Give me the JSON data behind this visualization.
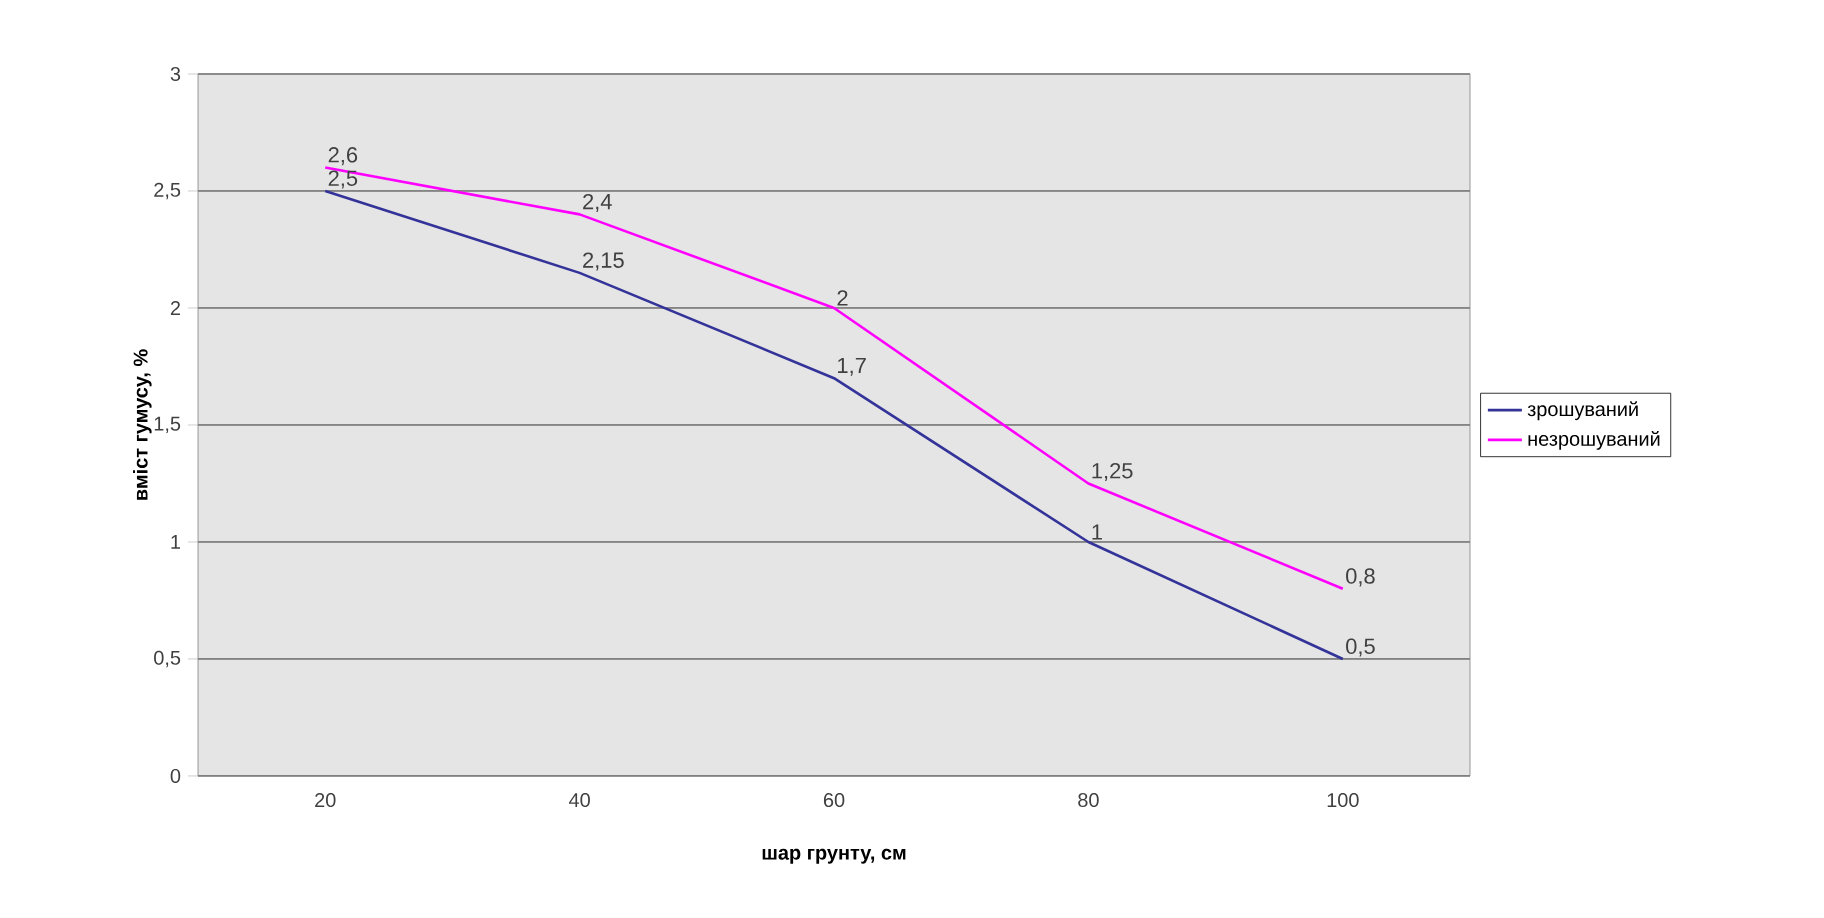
{
  "chart_data": {
    "type": "line",
    "xlabel": "шар грунту, см",
    "ylabel": "вміст гумусу, %",
    "categories": [
      "20",
      "40",
      "60",
      "80",
      "100"
    ],
    "series": [
      {
        "name": "зрошуваний",
        "color": "#333399",
        "values": [
          2.5,
          2.15,
          1.7,
          1,
          0.5
        ],
        "value_labels": [
          "2,5",
          "2,15",
          "1,7",
          "1",
          "0,5"
        ]
      },
      {
        "name": "незрошуваний",
        "color": "#ff00ff",
        "values": [
          2.6,
          2.4,
          2,
          1.25,
          0.8
        ],
        "value_labels": [
          "2,6",
          "2,4",
          "2",
          "1,25",
          "0,8"
        ]
      }
    ],
    "ylim": [
      0,
      3
    ],
    "yticks": [
      0,
      {
        "value": 0.5,
        "label": "0,5"
      },
      1,
      {
        "value": 1.5,
        "label": "1,5"
      },
      2,
      {
        "value": 2.5,
        "label": "2,5"
      },
      3
    ],
    "grid": "y",
    "legend": "right",
    "marker": "none",
    "line_style": "solid"
  }
}
